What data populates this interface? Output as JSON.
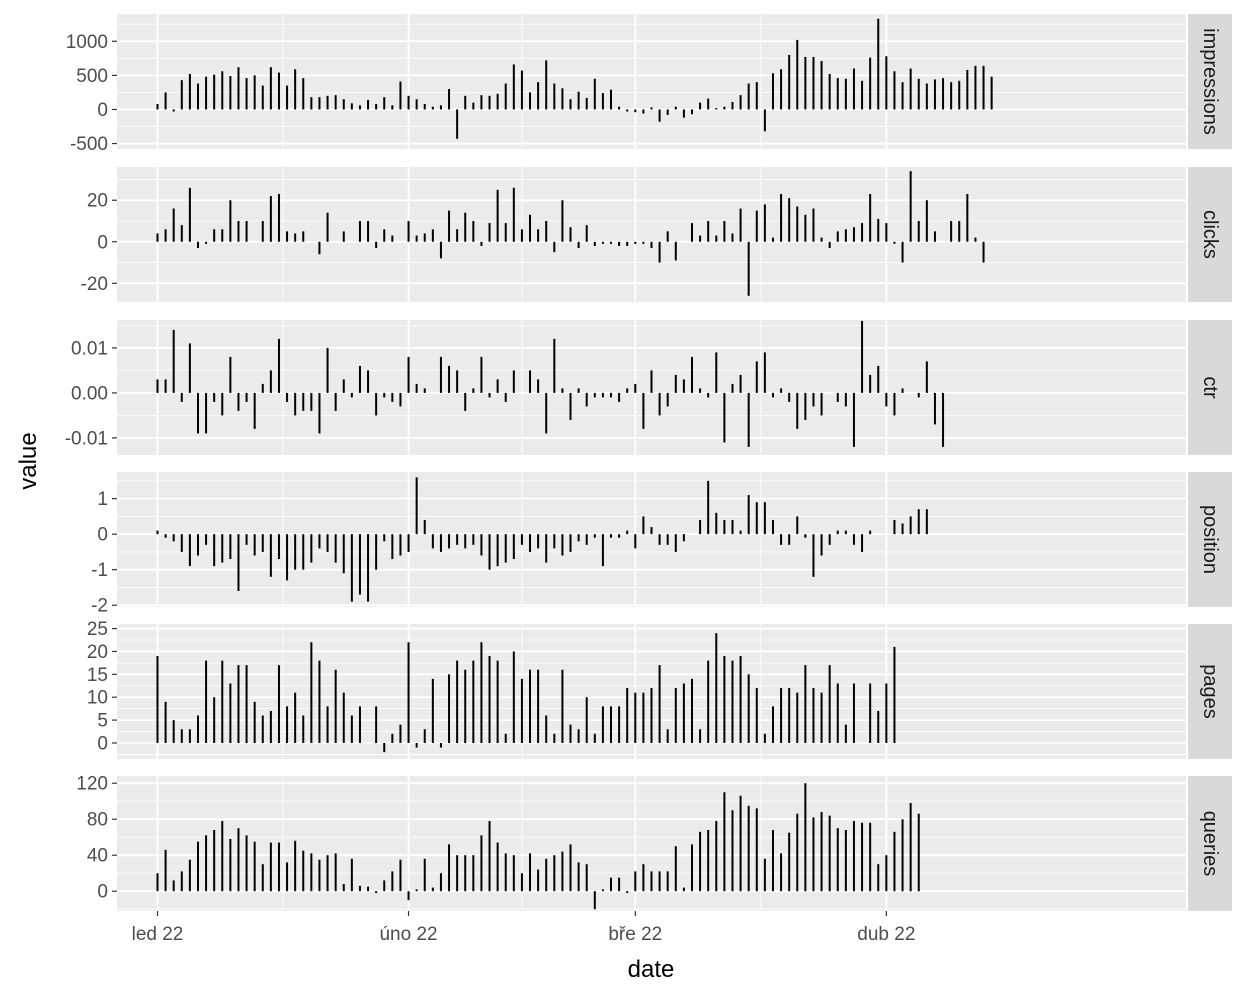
{
  "chart_data": {
    "type": "bar",
    "xlabel": "date",
    "ylabel": "value",
    "x_ticks": [
      "led 22",
      "úno 22",
      "bře 22",
      "dub 22"
    ],
    "x_tick_dates": [
      "2022-01-01",
      "2022-02-01",
      "2022-03-01",
      "2022-04-01"
    ],
    "x_range": [
      "2021-12-27",
      "2022-05-08"
    ],
    "dates": [
      "2022-01-01",
      "2022-01-02",
      "2022-01-03",
      "2022-01-04",
      "2022-01-05",
      "2022-01-06",
      "2022-01-07",
      "2022-01-08",
      "2022-01-09",
      "2022-01-10",
      "2022-01-11",
      "2022-01-12",
      "2022-01-13",
      "2022-01-14",
      "2022-01-15",
      "2022-01-16",
      "2022-01-17",
      "2022-01-18",
      "2022-01-19",
      "2022-01-20",
      "2022-01-21",
      "2022-01-22",
      "2022-01-23",
      "2022-01-24",
      "2022-01-25",
      "2022-01-26",
      "2022-01-27",
      "2022-01-28",
      "2022-01-29",
      "2022-01-30",
      "2022-01-31",
      "2022-02-01",
      "2022-02-02",
      "2022-02-03",
      "2022-02-04",
      "2022-02-05",
      "2022-02-06",
      "2022-02-07",
      "2022-02-08",
      "2022-02-09",
      "2022-02-10",
      "2022-02-11",
      "2022-02-12",
      "2022-02-13",
      "2022-02-14",
      "2022-02-15",
      "2022-02-16",
      "2022-02-17",
      "2022-02-18",
      "2022-02-19",
      "2022-02-20",
      "2022-02-21",
      "2022-02-22",
      "2022-02-23",
      "2022-02-24",
      "2022-02-25",
      "2022-02-26",
      "2022-02-27",
      "2022-02-28",
      "2022-03-01",
      "2022-03-02",
      "2022-03-03",
      "2022-03-04",
      "2022-03-05",
      "2022-03-06",
      "2022-03-07",
      "2022-03-08",
      "2022-03-09",
      "2022-03-10",
      "2022-03-11",
      "2022-03-12",
      "2022-03-13",
      "2022-03-14",
      "2022-03-15",
      "2022-03-16",
      "2022-03-17",
      "2022-03-18",
      "2022-03-19",
      "2022-03-20",
      "2022-03-21",
      "2022-03-22",
      "2022-03-23",
      "2022-03-24",
      "2022-03-25",
      "2022-03-26",
      "2022-03-27",
      "2022-03-28",
      "2022-03-29",
      "2022-03-30",
      "2022-03-31",
      "2022-04-01",
      "2022-04-02",
      "2022-04-03",
      "2022-04-04",
      "2022-04-05",
      "2022-04-06",
      "2022-04-07",
      "2022-04-08",
      "2022-04-09",
      "2022-04-10",
      "2022-04-11",
      "2022-04-12",
      "2022-04-13",
      "2022-04-14",
      "2022-04-15"
    ],
    "series": [
      {
        "name": "impressions",
        "ylim": [
          -580,
          1400
        ],
        "y_ticks": [
          1000,
          500,
          0,
          -500
        ],
        "y_tick_labels": [
          "1000",
          "500",
          "0",
          "-500"
        ],
        "values": [
          80,
          250,
          -30,
          430,
          520,
          380,
          480,
          510,
          560,
          490,
          620,
          460,
          500,
          350,
          620,
          540,
          350,
          590,
          460,
          180,
          180,
          200,
          210,
          150,
          90,
          60,
          140,
          80,
          180,
          60,
          410,
          200,
          150,
          80,
          40,
          60,
          300,
          -430,
          200,
          100,
          210,
          200,
          230,
          380,
          660,
          570,
          250,
          400,
          720,
          380,
          310,
          150,
          260,
          170,
          450,
          240,
          290,
          40,
          -30,
          -40,
          -60,
          30,
          -180,
          -80,
          40,
          -120,
          -70,
          100,
          160,
          20,
          40,
          110,
          210,
          380,
          400,
          -320,
          530,
          590,
          800,
          1020,
          770,
          770,
          710,
          520,
          460,
          450,
          600,
          420,
          760,
          1330,
          780,
          560,
          400,
          600,
          450,
          380,
          440,
          460,
          400,
          420,
          580,
          640,
          640,
          480,
          0
        ]
      },
      {
        "name": "clicks",
        "ylim": [
          -29,
          36
        ],
        "y_ticks": [
          20,
          0,
          -20
        ],
        "y_tick_labels": [
          "20",
          "0",
          "-20"
        ],
        "values": [
          4,
          6,
          16,
          8,
          26,
          -3,
          -1,
          6,
          6,
          20,
          10,
          10,
          0,
          10,
          22,
          23,
          5,
          4,
          5,
          0,
          -6,
          14,
          0,
          5,
          0,
          10,
          10,
          -3,
          6,
          3,
          0,
          10,
          3,
          4,
          6,
          -8,
          15,
          6,
          14,
          10,
          -2,
          9,
          25,
          9,
          26,
          6,
          13,
          6,
          10,
          -5,
          20,
          7,
          -3,
          8,
          -2,
          -1,
          -1,
          -2,
          -2,
          -1,
          -1,
          -3,
          -10,
          5,
          -9,
          0,
          9,
          3,
          10,
          3,
          10,
          4,
          16,
          -26,
          15,
          18,
          2,
          23,
          21,
          17,
          13,
          16,
          2,
          -3,
          5,
          6,
          7,
          9,
          23,
          11,
          9,
          -1,
          -10,
          34,
          10,
          20,
          5,
          0,
          10,
          10,
          23,
          2,
          -10,
          0,
          0
        ]
      },
      {
        "name": "ctr",
        "ylim": [
          -0.0138,
          0.0162
        ],
        "y_ticks": [
          0.01,
          0.0,
          -0.01
        ],
        "y_tick_labels": [
          "0.01",
          "0.00",
          "-0.01"
        ],
        "values": [
          0.003,
          0.003,
          0.014,
          -0.002,
          0.011,
          -0.009,
          -0.009,
          -0.002,
          -0.005,
          0.008,
          -0.004,
          -0.002,
          -0.008,
          0.002,
          0.005,
          0.012,
          -0.002,
          -0.005,
          -0.004,
          -0.004,
          -0.009,
          0.01,
          -0.004,
          0.003,
          -0.001,
          0.006,
          0.005,
          -0.005,
          -0.001,
          -0.002,
          -0.003,
          0.008,
          0.002,
          0.001,
          0.0,
          0.008,
          0.006,
          0.005,
          -0.004,
          0.001,
          0.008,
          -0.001,
          0.003,
          -0.002,
          0.005,
          0.0,
          0.005,
          0.003,
          -0.009,
          0.012,
          0.001,
          -0.006,
          0.001,
          -0.003,
          -0.001,
          -0.001,
          -0.001,
          -0.002,
          0.001,
          0.002,
          -0.008,
          0.005,
          -0.005,
          -0.003,
          0.004,
          0.003,
          0.008,
          0.001,
          -0.001,
          0.009,
          -0.011,
          0.002,
          0.004,
          -0.012,
          0.007,
          0.009,
          -0.001,
          0.001,
          -0.002,
          -0.008,
          -0.006,
          -0.003,
          -0.005,
          0.0,
          -0.002,
          -0.003,
          -0.012,
          0.016,
          0.004,
          0.006,
          -0.003,
          -0.005,
          0.001,
          0.0,
          -0.001,
          0.007,
          -0.007,
          -0.012,
          0.0,
          0.0,
          0.0,
          0.0,
          0.0,
          0.0,
          0.0
        ]
      },
      {
        "name": "position",
        "ylim": [
          -2.05,
          1.75
        ],
        "y_ticks": [
          1,
          0,
          -1,
          -2
        ],
        "y_tick_labels": [
          "1",
          "0",
          "-1",
          "-2"
        ],
        "values": [
          0.1,
          -0.1,
          -0.2,
          -0.5,
          -0.9,
          -0.6,
          -0.3,
          -0.9,
          -0.8,
          -0.7,
          -1.6,
          -0.3,
          -0.6,
          -0.5,
          -1.2,
          -0.7,
          -1.3,
          -1.0,
          -1.0,
          -0.8,
          -0.4,
          -0.5,
          -0.8,
          -1.1,
          -1.9,
          -1.7,
          -1.9,
          -1.0,
          -0.2,
          -0.7,
          -0.6,
          -0.5,
          1.6,
          0.4,
          -0.4,
          -0.5,
          -0.4,
          -0.3,
          -0.4,
          -0.3,
          -0.6,
          -1.0,
          -0.9,
          -0.8,
          -0.7,
          -0.3,
          -0.5,
          -0.4,
          -0.8,
          -0.4,
          -0.6,
          -0.5,
          -0.2,
          -0.3,
          -0.1,
          -0.9,
          -0.1,
          -0.1,
          0.1,
          -0.4,
          0.5,
          0.2,
          -0.3,
          -0.3,
          -0.5,
          -0.2,
          0.0,
          0.4,
          1.5,
          0.6,
          0.4,
          0.4,
          0.1,
          1.1,
          0.9,
          0.9,
          0.4,
          -0.3,
          -0.3,
          0.5,
          -0.1,
          -1.2,
          -0.6,
          -0.3,
          0.1,
          0.1,
          -0.3,
          -0.5,
          0.1,
          0.0,
          0.0,
          0.4,
          0.3,
          0.5,
          0.7,
          0.7,
          0.0,
          0.0,
          0.0,
          0.0,
          0.0,
          0.0,
          0.0,
          0.0,
          0.0
        ]
      },
      {
        "name": "pages",
        "ylim": [
          -3.5,
          26
        ],
        "y_ticks": [
          25,
          20,
          15,
          10,
          5,
          0
        ],
        "y_tick_labels": [
          "25",
          "20",
          "15",
          "10",
          "5",
          "0"
        ],
        "values": [
          19,
          9,
          5,
          3,
          3,
          6,
          18,
          10,
          18,
          13,
          17,
          17,
          9,
          6,
          7,
          17,
          8,
          11,
          6,
          22,
          18,
          8,
          16,
          11,
          6,
          8,
          0,
          8,
          -2,
          2,
          4,
          22,
          -1,
          3,
          14,
          -1,
          15,
          18,
          16,
          18,
          22,
          19,
          18,
          2,
          20,
          14,
          16,
          16,
          6,
          2,
          16,
          4,
          3,
          10,
          2,
          8,
          8,
          8,
          12,
          11,
          11,
          12,
          17,
          3,
          12,
          13,
          14,
          3,
          18,
          24,
          19,
          18,
          19,
          15,
          12,
          2,
          8,
          12,
          12,
          11,
          17,
          12,
          11,
          17,
          13,
          4,
          13,
          0,
          13,
          7,
          13,
          21,
          0,
          0,
          0,
          0,
          0,
          0,
          0,
          0,
          0,
          0,
          0,
          0,
          0
        ]
      },
      {
        "name": "queries",
        "ylim": [
          -22,
          128
        ],
        "y_ticks": [
          120,
          80,
          40,
          0
        ],
        "y_tick_labels": [
          "120",
          "80",
          "40",
          "0"
        ],
        "values": [
          20,
          46,
          12,
          22,
          35,
          55,
          62,
          68,
          78,
          58,
          70,
          62,
          55,
          30,
          54,
          54,
          32,
          56,
          45,
          42,
          35,
          40,
          42,
          8,
          36,
          6,
          5,
          -2,
          12,
          22,
          35,
          -10,
          2,
          36,
          4,
          20,
          52,
          40,
          40,
          40,
          62,
          78,
          54,
          42,
          40,
          20,
          42,
          24,
          36,
          40,
          44,
          52,
          32,
          30,
          -20,
          2,
          15,
          15,
          -2,
          22,
          30,
          22,
          22,
          22,
          50,
          4,
          52,
          66,
          68,
          78,
          110,
          90,
          106,
          95,
          92,
          36,
          68,
          42,
          65,
          86,
          120,
          82,
          88,
          84,
          70,
          68,
          78,
          76,
          76,
          30,
          40,
          66,
          80,
          98,
          86,
          0,
          0,
          0,
          0,
          0,
          0,
          0,
          0,
          0,
          0
        ]
      }
    ],
    "grid": true,
    "legend": "none",
    "colors": {
      "panel": "#ebebeb",
      "strip": "#d9d9d9",
      "grid_major": "#ffffff",
      "bar": "#000000",
      "text": "#4d4d4d"
    }
  }
}
